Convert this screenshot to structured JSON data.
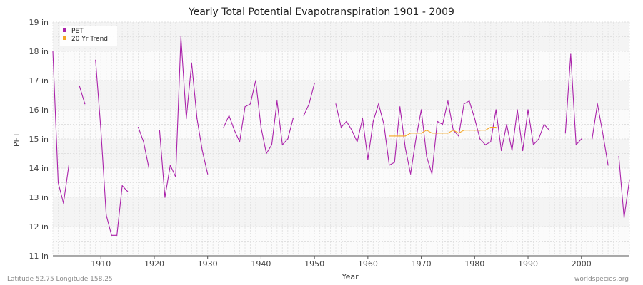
{
  "chart_data": {
    "type": "line",
    "title": "Yearly Total Potential Evapotranspiration 1901 - 2009",
    "xlabel": "Year",
    "ylabel": "PET",
    "xlim": [
      1901,
      2009
    ],
    "ylim": [
      11,
      19
    ],
    "x_ticks": [
      1910,
      1920,
      1930,
      1940,
      1950,
      1960,
      1970,
      1980,
      1990,
      2000
    ],
    "y_ticks": [
      11,
      12,
      13,
      14,
      15,
      16,
      17,
      18,
      19
    ],
    "y_tick_labels": [
      "11 in",
      "12 in",
      "13 in",
      "14 in",
      "15 in",
      "16 in",
      "17 in",
      "18 in",
      "19 in"
    ],
    "grid": true,
    "legend_position": "top-left",
    "series": [
      {
        "name": "PET",
        "color": "#aa22aa",
        "points": [
          [
            1901,
            18.0
          ],
          [
            1902,
            13.5
          ],
          [
            1903,
            12.8
          ],
          [
            1904,
            14.1
          ],
          [
            1906,
            16.8
          ],
          [
            1907,
            16.2
          ],
          [
            1909,
            17.7
          ],
          [
            1910,
            15.3
          ],
          [
            1911,
            12.4
          ],
          [
            1912,
            11.7
          ],
          [
            1913,
            11.7
          ],
          [
            1914,
            13.4
          ],
          [
            1915,
            13.2
          ],
          [
            1917,
            15.4
          ],
          [
            1918,
            14.9
          ],
          [
            1919,
            14.0
          ],
          [
            1921,
            15.3
          ],
          [
            1922,
            13.0
          ],
          [
            1923,
            14.1
          ],
          [
            1924,
            13.7
          ],
          [
            1925,
            18.5
          ],
          [
            1926,
            15.7
          ],
          [
            1927,
            17.6
          ],
          [
            1928,
            15.7
          ],
          [
            1929,
            14.6
          ],
          [
            1930,
            13.8
          ],
          [
            1933,
            15.4
          ],
          [
            1934,
            15.8
          ],
          [
            1935,
            15.3
          ],
          [
            1936,
            14.9
          ],
          [
            1937,
            16.1
          ],
          [
            1938,
            16.2
          ],
          [
            1939,
            17.0
          ],
          [
            1940,
            15.4
          ],
          [
            1941,
            14.5
          ],
          [
            1942,
            14.8
          ],
          [
            1943,
            16.3
          ],
          [
            1944,
            14.8
          ],
          [
            1945,
            15.0
          ],
          [
            1946,
            15.7
          ],
          [
            1948,
            15.8
          ],
          [
            1949,
            16.2
          ],
          [
            1950,
            16.9
          ],
          [
            1954,
            16.2
          ],
          [
            1955,
            15.4
          ],
          [
            1956,
            15.6
          ],
          [
            1957,
            15.3
          ],
          [
            1958,
            14.9
          ],
          [
            1959,
            15.7
          ],
          [
            1960,
            14.3
          ],
          [
            1961,
            15.6
          ],
          [
            1962,
            16.2
          ],
          [
            1963,
            15.5
          ],
          [
            1964,
            14.1
          ],
          [
            1965,
            14.2
          ],
          [
            1966,
            16.1
          ],
          [
            1967,
            14.7
          ],
          [
            1968,
            13.8
          ],
          [
            1969,
            15.0
          ],
          [
            1970,
            16.0
          ],
          [
            1971,
            14.4
          ],
          [
            1972,
            13.8
          ],
          [
            1973,
            15.6
          ],
          [
            1974,
            15.5
          ],
          [
            1975,
            16.3
          ],
          [
            1976,
            15.3
          ],
          [
            1977,
            15.1
          ],
          [
            1978,
            16.2
          ],
          [
            1979,
            16.3
          ],
          [
            1980,
            15.7
          ],
          [
            1981,
            15.0
          ],
          [
            1982,
            14.8
          ],
          [
            1983,
            14.9
          ],
          [
            1984,
            16.0
          ],
          [
            1985,
            14.6
          ],
          [
            1986,
            15.5
          ],
          [
            1987,
            14.6
          ],
          [
            1988,
            16.0
          ],
          [
            1989,
            14.6
          ],
          [
            1990,
            16.0
          ],
          [
            1991,
            14.8
          ],
          [
            1992,
            15.0
          ],
          [
            1993,
            15.5
          ],
          [
            1994,
            15.3
          ],
          [
            1997,
            15.2
          ],
          [
            1998,
            17.9
          ],
          [
            1999,
            14.8
          ],
          [
            2000,
            15.0
          ],
          [
            2002,
            15.0
          ],
          [
            2003,
            16.2
          ],
          [
            2004,
            15.2
          ],
          [
            2005,
            14.1
          ],
          [
            2007,
            14.4
          ],
          [
            2008,
            12.3
          ],
          [
            2009,
            13.6
          ]
        ]
      },
      {
        "name": "20 Yr Trend",
        "color": "#f5a623",
        "points": [
          [
            1964,
            15.1
          ],
          [
            1965,
            15.1
          ],
          [
            1966,
            15.1
          ],
          [
            1967,
            15.1
          ],
          [
            1968,
            15.2
          ],
          [
            1969,
            15.2
          ],
          [
            1970,
            15.2
          ],
          [
            1971,
            15.3
          ],
          [
            1972,
            15.2
          ],
          [
            1973,
            15.2
          ],
          [
            1974,
            15.2
          ],
          [
            1975,
            15.2
          ],
          [
            1976,
            15.3
          ],
          [
            1977,
            15.2
          ],
          [
            1978,
            15.3
          ],
          [
            1979,
            15.3
          ],
          [
            1980,
            15.3
          ],
          [
            1981,
            15.3
          ],
          [
            1982,
            15.3
          ],
          [
            1983,
            15.4
          ],
          [
            1984,
            15.4
          ]
        ]
      }
    ]
  },
  "footer": {
    "left": "Latitude 52.75 Longitude 158.25",
    "right": "worldspecies.org"
  }
}
